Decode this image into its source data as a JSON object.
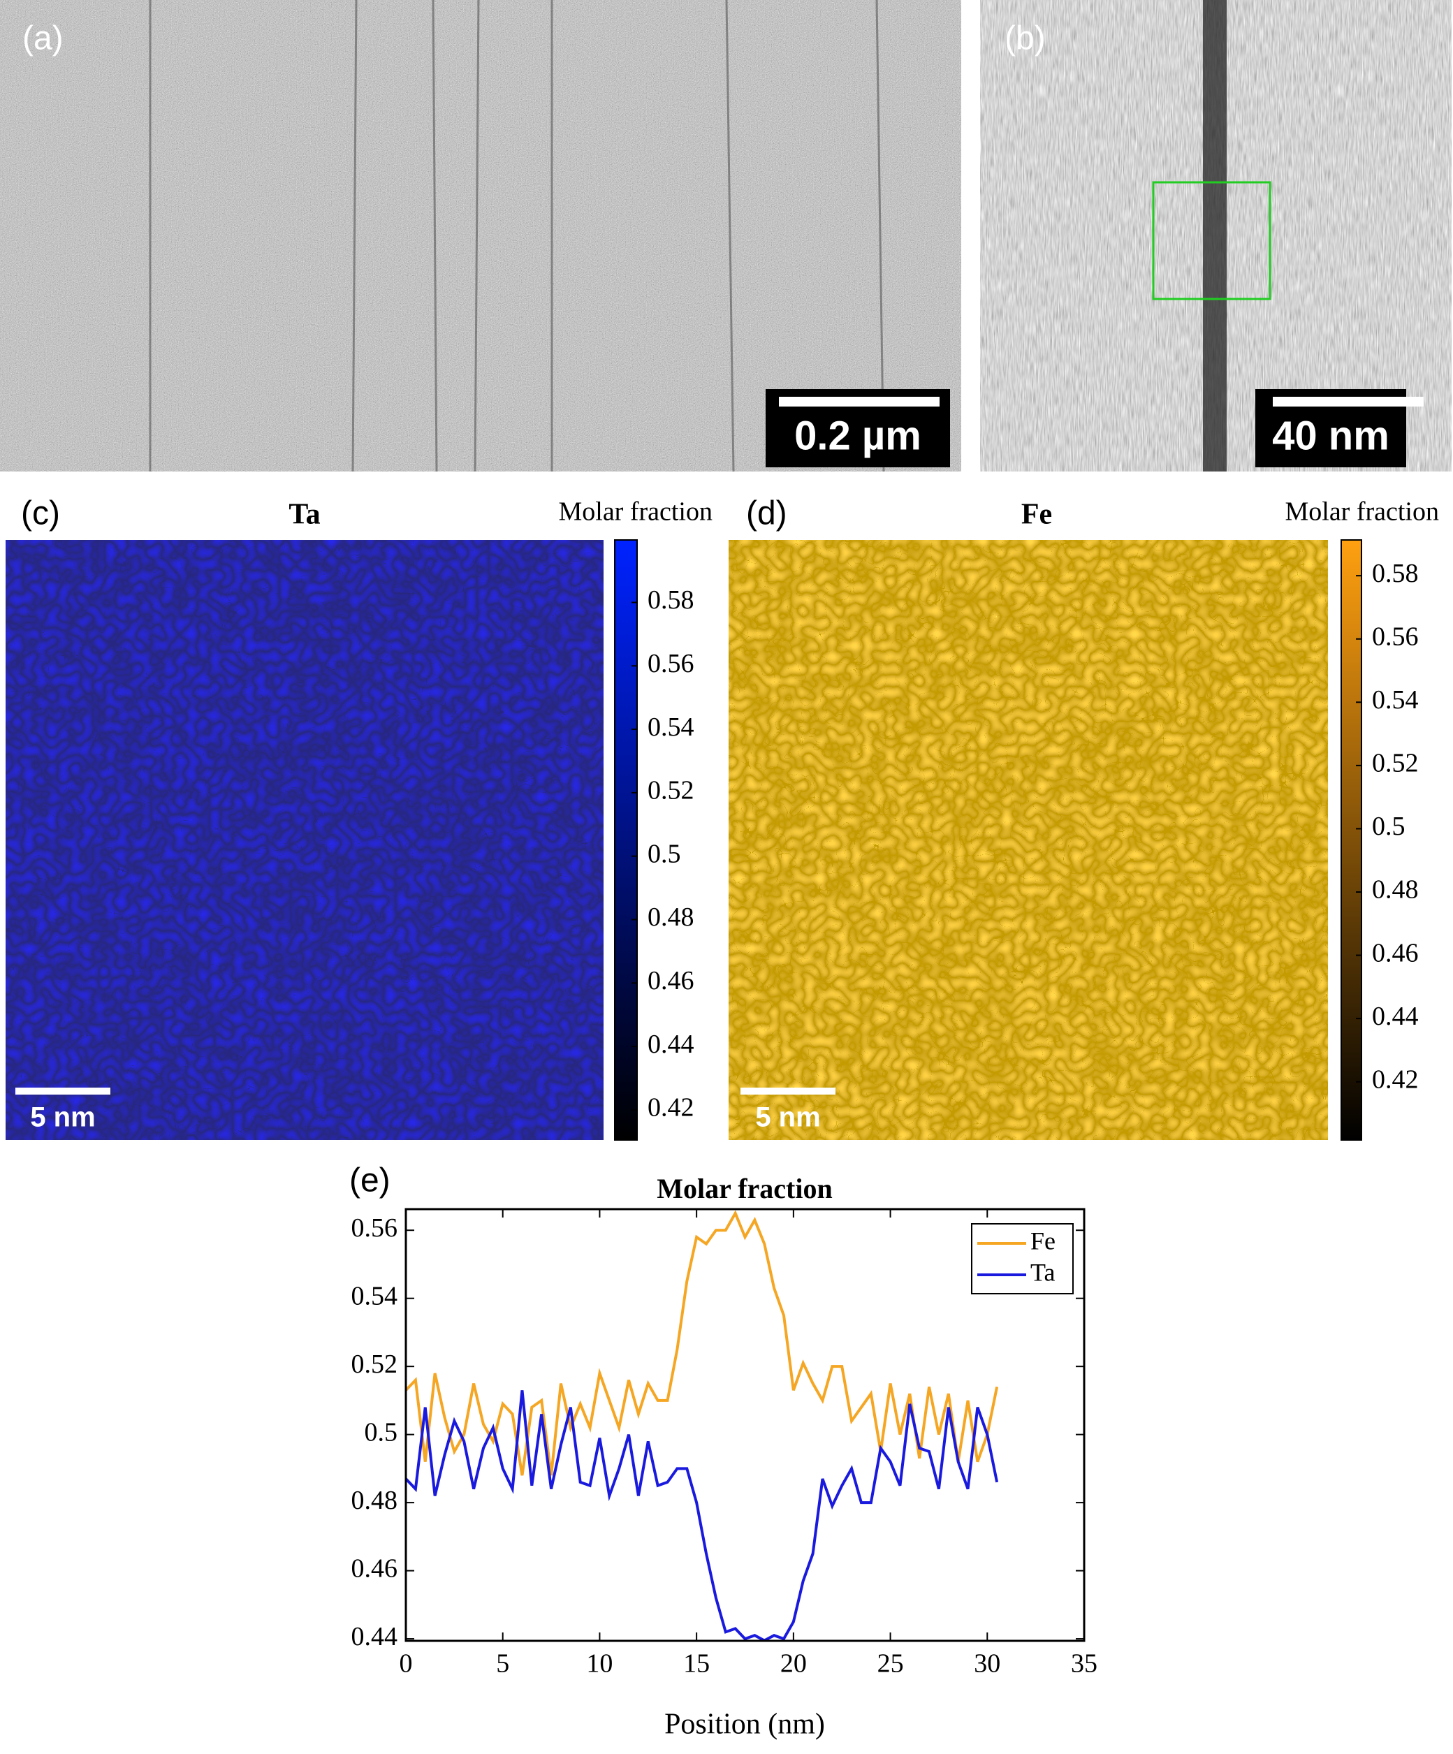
{
  "chart_data": [
    {
      "type": "image",
      "label": "(a)",
      "scale_bar": "0.2 µm"
    },
    {
      "type": "image",
      "label": "(b)",
      "scale_bar": "40 nm"
    },
    {
      "type": "heatmap",
      "label": "(c)",
      "title": "Ta",
      "colorbar_label": "Molar fraction",
      "scale_bar": "5 nm",
      "colormap": [
        "#000000",
        "#0022ff"
      ],
      "clim": [
        0.4105,
        0.5997
      ],
      "cticks": [
        0.42,
        0.44,
        0.46,
        0.48,
        0.5,
        0.52,
        0.54,
        0.56,
        0.58
      ]
    },
    {
      "type": "heatmap",
      "label": "(d)",
      "title": "Fe",
      "colorbar_label": "Molar fraction",
      "scale_bar": "5 nm",
      "colormap": [
        "#000000",
        "#ffa010"
      ],
      "clim": [
        0.4016,
        0.5913
      ],
      "cticks": [
        0.42,
        0.44,
        0.46,
        0.48,
        0.5,
        0.52,
        0.54,
        0.56,
        0.58
      ]
    },
    {
      "type": "line",
      "label": "(e)",
      "title": "Molar fraction",
      "xlabel": "Position (nm)",
      "x": [
        0,
        0.5,
        1,
        1.5,
        2,
        2.5,
        3,
        3.5,
        4,
        4.5,
        5,
        5.5,
        6,
        6.5,
        7,
        7.5,
        8,
        8.5,
        9,
        9.5,
        10,
        10.5,
        11,
        11.5,
        12,
        12.5,
        13,
        13.5,
        14,
        14.5,
        15,
        15.5,
        16,
        16.5,
        17,
        17.5,
        18,
        18.5,
        19,
        19.5,
        20,
        20.5,
        21,
        21.5,
        22,
        22.5,
        23,
        23.5,
        24,
        24.5,
        25,
        25.5,
        26,
        26.5,
        27,
        27.5,
        28,
        28.5,
        29,
        29.5,
        30,
        30.5
      ],
      "series": [
        {
          "name": "Fe",
          "color": "#f5a623",
          "values": [
            0.513,
            0.516,
            0.492,
            0.518,
            0.505,
            0.495,
            0.5,
            0.515,
            0.503,
            0.498,
            0.509,
            0.506,
            0.488,
            0.508,
            0.51,
            0.488,
            0.515,
            0.502,
            0.509,
            0.502,
            0.518,
            0.51,
            0.502,
            0.516,
            0.506,
            0.515,
            0.51,
            0.51,
            0.525,
            0.545,
            0.558,
            0.556,
            0.56,
            0.56,
            0.565,
            0.558,
            0.563,
            0.556,
            0.543,
            0.535,
            0.513,
            0.521,
            0.515,
            0.51,
            0.52,
            0.52,
            0.504,
            0.508,
            0.512,
            0.495,
            0.515,
            0.5,
            0.512,
            0.493,
            0.514,
            0.5,
            0.512,
            0.492,
            0.51,
            0.492,
            0.5,
            0.514
          ]
        },
        {
          "name": "Ta",
          "color": "#1a1adf",
          "values": [
            0.487,
            0.484,
            0.508,
            0.482,
            0.494,
            0.504,
            0.498,
            0.484,
            0.496,
            0.502,
            0.49,
            0.484,
            0.513,
            0.485,
            0.506,
            0.484,
            0.497,
            0.508,
            0.486,
            0.485,
            0.499,
            0.482,
            0.49,
            0.5,
            0.482,
            0.498,
            0.485,
            0.486,
            0.49,
            0.49,
            0.48,
            0.465,
            0.452,
            0.442,
            0.443,
            0.44,
            0.441,
            0.4395,
            0.441,
            0.44,
            0.445,
            0.457,
            0.465,
            0.487,
            0.479,
            0.485,
            0.49,
            0.48,
            0.48,
            0.496,
            0.492,
            0.485,
            0.509,
            0.496,
            0.495,
            0.484,
            0.508,
            0.492,
            0.484,
            0.508,
            0.5,
            0.486
          ]
        }
      ],
      "xlim": [
        0,
        35
      ],
      "ylim": [
        0.4394,
        0.5662
      ],
      "xticks": [
        0,
        5,
        10,
        15,
        20,
        25,
        30,
        35
      ],
      "yticks": [
        0.44,
        0.46,
        0.48,
        0.5,
        0.52,
        0.54,
        0.56
      ],
      "legend": "upper right",
      "grid": false
    }
  ]
}
